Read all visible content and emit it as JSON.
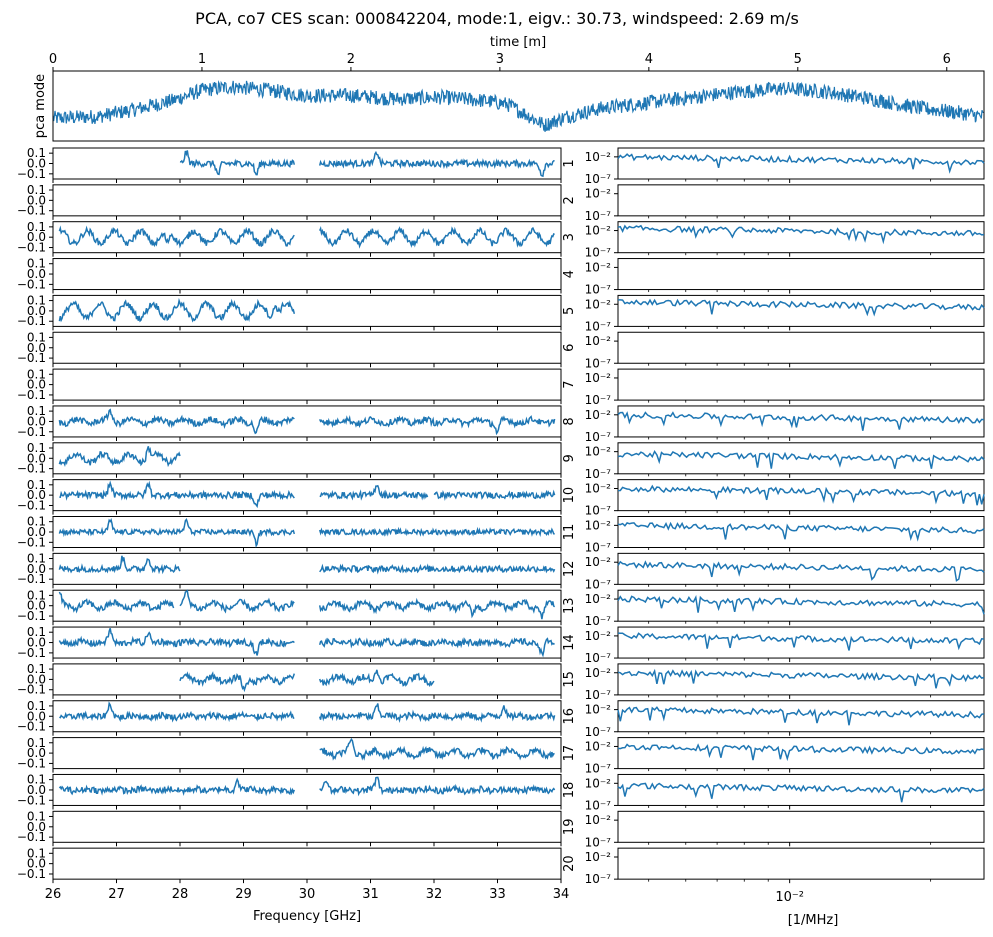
{
  "chart_data": {
    "type": "line",
    "title": "PCA, co7 CES scan: 000842204, mode:1, eigv.: 30.73, windspeed: 2.69 m/s",
    "line_color": "#1f77b4",
    "top_panel": {
      "xlabel": "time [m]",
      "ylabel": "pca mode",
      "xlim": [
        0,
        6.25
      ],
      "xticks": [
        0,
        1,
        2,
        3,
        4,
        5,
        6
      ],
      "xtick_labels": [
        "0",
        "1",
        "2",
        "3",
        "4",
        "5",
        "6"
      ],
      "ylim": [
        -1,
        1
      ],
      "profile_t": [
        0,
        0.3,
        0.55,
        0.8,
        1.0,
        1.2,
        1.45,
        1.7,
        2.0,
        2.3,
        2.6,
        2.9,
        3.05,
        3.2,
        3.3,
        3.45,
        3.7,
        4.0,
        4.3,
        4.6,
        4.9,
        5.2,
        5.5,
        5.8,
        6.1,
        6.25
      ],
      "profile_v": [
        -0.35,
        -0.3,
        -0.1,
        0.15,
        0.45,
        0.55,
        0.45,
        0.3,
        0.3,
        0.2,
        0.25,
        0.15,
        0.05,
        -0.3,
        -0.55,
        -0.3,
        -0.05,
        0.1,
        0.25,
        0.4,
        0.5,
        0.4,
        0.2,
        -0.05,
        -0.2,
        -0.3
      ]
    },
    "freq_panels": {
      "xlabel": "Frequency [GHz]",
      "xlim": [
        26,
        34
      ],
      "xticks": [
        26,
        27,
        28,
        29,
        30,
        31,
        32,
        33,
        34
      ],
      "xtick_labels": [
        "26",
        "27",
        "28",
        "29",
        "30",
        "31",
        "32",
        "33",
        "34"
      ],
      "ylim": [
        -0.15,
        0.15
      ],
      "yticks": [
        0.1,
        0.0,
        -0.1
      ],
      "ytick_labels": [
        "0.1",
        "0.0",
        "−0.1"
      ]
    },
    "psd_panels": {
      "xlabel": "[1/MHz]",
      "xscale": "log",
      "xlim": [
        0.0043,
        0.026
      ],
      "major_tick": 0.01,
      "major_tick_label": "10⁻²",
      "ylim_exp": [
        -7,
        0
      ],
      "ytick_labels": [
        "10⁻²",
        "10⁻⁷"
      ]
    },
    "feeds": [
      {
        "feed": "1",
        "segments": [
          [
            28.0,
            29.8
          ],
          [
            30.2,
            33.9
          ]
        ],
        "amp": 0.03,
        "osc": 0.0,
        "spikes": [
          28.1,
          28.6,
          29.2,
          31.1,
          33.7
        ],
        "psd_level": -2.0
      },
      {
        "feed": "2",
        "segments": [],
        "amp": 0,
        "osc": 0,
        "spikes": [],
        "psd_level": null
      },
      {
        "feed": "3",
        "segments": [
          [
            26.1,
            29.8
          ],
          [
            30.2,
            33.9
          ]
        ],
        "amp": 0.03,
        "osc": 0.06,
        "spikes": [
          27.8
        ],
        "psd_level": -1.5
      },
      {
        "feed": "4",
        "segments": [],
        "amp": 0,
        "osc": 0,
        "spikes": [],
        "psd_level": null
      },
      {
        "feed": "5",
        "segments": [
          [
            26.1,
            29.8
          ]
        ],
        "amp": 0.03,
        "osc": 0.07,
        "spikes": [
          29.5
        ],
        "psd_level": -1.5
      },
      {
        "feed": "6",
        "segments": [],
        "amp": 0,
        "osc": 0,
        "spikes": [],
        "psd_level": null
      },
      {
        "feed": "7",
        "segments": [],
        "amp": 0,
        "osc": 0,
        "spikes": [],
        "psd_level": null
      },
      {
        "feed": "8",
        "segments": [
          [
            26.1,
            29.8
          ],
          [
            30.2,
            33.9
          ]
        ],
        "amp": 0.03,
        "osc": 0.02,
        "spikes": [
          26.9,
          29.2,
          33.0
        ],
        "psd_level": -2.0
      },
      {
        "feed": "9",
        "segments": [
          [
            26.1,
            28.0
          ]
        ],
        "amp": 0.03,
        "osc": 0.04,
        "spikes": [
          27.5
        ],
        "psd_level": -2.5
      },
      {
        "feed": "10",
        "segments": [
          [
            26.1,
            29.8
          ],
          [
            30.2,
            31.9
          ],
          [
            32.0,
            33.9
          ]
        ],
        "amp": 0.03,
        "osc": 0.0,
        "spikes": [
          26.9,
          27.5,
          29.2,
          31.1
        ],
        "psd_level": -2.0
      },
      {
        "feed": "11",
        "segments": [
          [
            26.1,
            29.8
          ],
          [
            30.2,
            33.9
          ]
        ],
        "amp": 0.025,
        "osc": 0.0,
        "spikes": [
          26.9,
          28.1,
          29.2
        ],
        "psd_level": -2.0
      },
      {
        "feed": "12",
        "segments": [
          [
            26.1,
            28.0
          ],
          [
            30.2,
            33.9
          ]
        ],
        "amp": 0.03,
        "osc": 0.0,
        "spikes": [
          27.1,
          27.5
        ],
        "psd_level": -2.5
      },
      {
        "feed": "13",
        "segments": [
          [
            26.1,
            27.9
          ],
          [
            28.0,
            29.8
          ],
          [
            30.2,
            33.9
          ]
        ],
        "amp": 0.03,
        "osc": 0.03,
        "spikes": [
          26.1,
          28.1,
          32.6,
          33.7
        ],
        "psd_level": -2.0
      },
      {
        "feed": "14",
        "segments": [
          [
            26.1,
            29.8
          ],
          [
            30.2,
            33.9
          ]
        ],
        "amp": 0.03,
        "osc": 0.01,
        "spikes": [
          26.9,
          27.5,
          29.2,
          33.7
        ],
        "psd_level": -2.0
      },
      {
        "feed": "15",
        "segments": [
          [
            28.0,
            29.8
          ],
          [
            30.2,
            32.0
          ]
        ],
        "amp": 0.03,
        "osc": 0.03,
        "spikes": [
          29.0,
          31.1
        ],
        "psd_level": -2.0
      },
      {
        "feed": "16",
        "segments": [
          [
            26.1,
            29.8
          ],
          [
            30.2,
            33.9
          ]
        ],
        "amp": 0.03,
        "osc": 0.01,
        "spikes": [
          26.9,
          31.1,
          33.1
        ],
        "psd_level": -2.0
      },
      {
        "feed": "17",
        "segments": [
          [
            30.2,
            33.9
          ]
        ],
        "amp": 0.03,
        "osc": 0.03,
        "spikes": [
          30.7
        ],
        "psd_level": -2.0
      },
      {
        "feed": "18",
        "segments": [
          [
            26.1,
            29.8
          ],
          [
            30.2,
            33.9
          ]
        ],
        "amp": 0.03,
        "osc": 0.01,
        "spikes": [
          28.9,
          30.3,
          31.1
        ],
        "psd_level": -2.5
      },
      {
        "feed": "19",
        "segments": [],
        "amp": 0,
        "osc": 0,
        "spikes": [],
        "psd_level": null
      },
      {
        "feed": "20",
        "segments": [],
        "amp": 0,
        "osc": 0,
        "spikes": [],
        "psd_level": null
      }
    ]
  }
}
